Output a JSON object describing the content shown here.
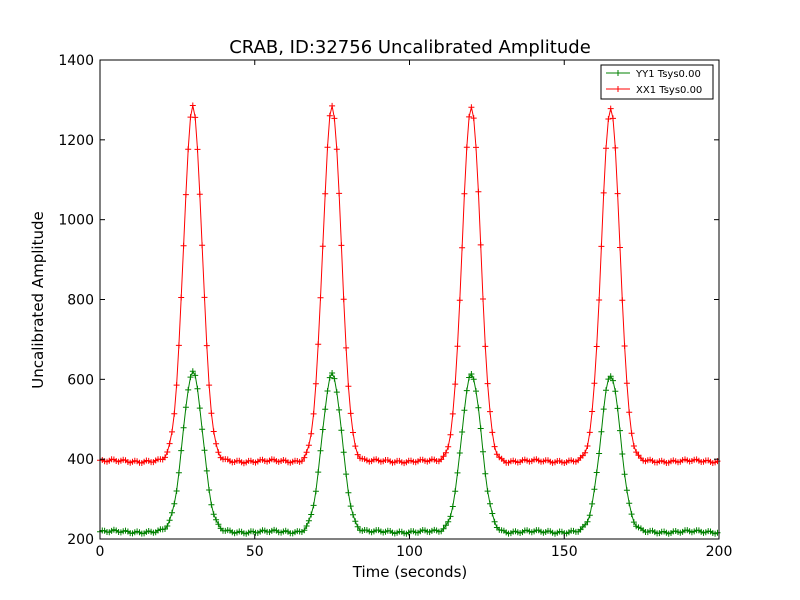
{
  "chart_data": {
    "type": "line",
    "title": "CRAB, ID:32756 Uncalibrated Amplitude",
    "xlabel": "Time (seconds)",
    "ylabel": "Uncalibrated Amplitude",
    "xlim": [
      0,
      200
    ],
    "ylim": [
      200,
      1400
    ],
    "xticks": [
      0,
      50,
      100,
      150,
      200
    ],
    "yticks": [
      200,
      400,
      600,
      800,
      1000,
      1200,
      1400
    ],
    "grid": false,
    "legend_position": "top-right",
    "marker": "plus",
    "series": [
      {
        "name": "YY1 Tsys0.00",
        "color": "#008000",
        "baseline": 218,
        "peaks": [
          [
            30,
            620
          ],
          [
            75,
            612
          ],
          [
            120,
            612
          ],
          [
            165,
            612
          ]
        ],
        "peak_half_width": 3.2
      },
      {
        "name": "XX1 Tsys0.00",
        "color": "#ff0000",
        "baseline": 395,
        "peaks": [
          [
            30,
            1285
          ],
          [
            75,
            1283
          ],
          [
            120,
            1283
          ],
          [
            165,
            1283
          ]
        ],
        "peak_half_width": 3.0
      }
    ]
  }
}
